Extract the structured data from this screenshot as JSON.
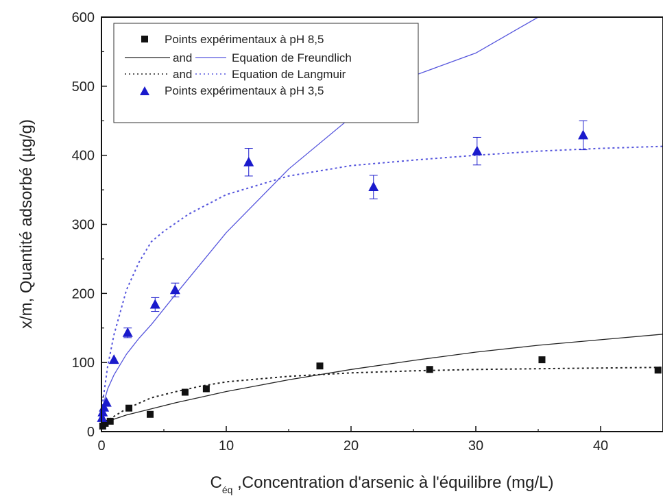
{
  "chart_data": {
    "type": "scatter",
    "title": "",
    "xlabel_main": "C",
    "xlabel_sub": "éq",
    "xlabel_rest": " ,Concentration d'arsenic à l'équilibre (mg/L)",
    "ylabel": "x/m, Quantité adsorbé (µg/g)",
    "xlim": [
      0,
      45
    ],
    "ylim": [
      0,
      600
    ],
    "xticks": [
      "0",
      "10",
      "20",
      "30",
      "40"
    ],
    "yticks": [
      "0",
      "100",
      "200",
      "300",
      "400",
      "500",
      "600"
    ],
    "xtick_values": [
      0,
      10,
      20,
      30,
      40
    ],
    "ytick_values": [
      0,
      100,
      200,
      300,
      400,
      500,
      600
    ],
    "grid": false,
    "legend_position": "top-left",
    "colors": {
      "ph85": "#111111",
      "ph35": "#1a1acc",
      "fit35": "#5555dd",
      "fit85": "#222222"
    },
    "series": [
      {
        "name": "Points expérimentaux à pH 8,5",
        "kind": "scatter",
        "marker": "square",
        "color": "#111111",
        "x": [
          0.1,
          0.3,
          0.7,
          2.2,
          3.9,
          6.7,
          8.4,
          17.5,
          26.3,
          35.3,
          44.6
        ],
        "y": [
          8,
          12,
          15,
          34,
          25,
          57,
          62,
          95,
          90,
          104,
          89
        ]
      },
      {
        "name": "Points expérimentaux à pH 3,5",
        "kind": "scatter",
        "marker": "triangle",
        "color": "#1a1acc",
        "x": [
          0.05,
          0.1,
          0.2,
          0.4,
          1.0,
          2.1,
          4.3,
          5.9,
          11.8,
          21.8,
          30.1,
          38.6
        ],
        "y": [
          20,
          28,
          35,
          42,
          104,
          143,
          184,
          205,
          390,
          354,
          406,
          429
        ],
        "err": [
          0,
          0,
          0,
          0,
          0,
          7,
          10,
          10,
          20,
          17,
          20,
          21
        ]
      },
      {
        "name": "Equation de Freundlich (pH 3,5)",
        "kind": "line",
        "dash": "solid",
        "color": "#5555dd",
        "x": [
          0,
          0.5,
          1,
          2,
          3,
          4,
          6,
          10,
          15,
          20,
          25,
          30,
          35
        ],
        "y": [
          30,
          62,
          82,
          112,
          135,
          155,
          200,
          288,
          380,
          455,
          515,
          548,
          600
        ]
      },
      {
        "name": "Equation de Langmuir (pH 3,5)",
        "kind": "line",
        "dash": "dotted",
        "color": "#5555dd",
        "x": [
          0,
          0.5,
          1,
          2,
          3,
          4,
          5,
          7,
          10,
          15,
          20,
          25,
          30,
          35,
          40,
          45
        ],
        "y": [
          30,
          95,
          140,
          205,
          245,
          275,
          290,
          315,
          343,
          370,
          385,
          393,
          400,
          406,
          410,
          413
        ]
      },
      {
        "name": "Equation de Freundlich (pH 8,5)",
        "kind": "line",
        "dash": "solid",
        "color": "#222222",
        "x": [
          0,
          1,
          2,
          4,
          6,
          8,
          10,
          15,
          20,
          25,
          30,
          35,
          40,
          45
        ],
        "y": [
          10,
          18,
          24,
          33,
          42,
          50,
          58,
          75,
          90,
          103,
          115,
          125,
          133,
          141
        ]
      },
      {
        "name": "Equation de Langmuir (pH 8,5)",
        "kind": "line",
        "dash": "dotted",
        "color": "#222222",
        "x": [
          0,
          1,
          2,
          4,
          6,
          8,
          10,
          15,
          20,
          25,
          30,
          35,
          40,
          45
        ],
        "y": [
          10,
          22,
          33,
          49,
          58,
          66,
          72,
          80,
          85,
          88,
          90,
          91,
          92,
          93
        ]
      }
    ],
    "legend": [
      {
        "label": "Points expérimentaux à pH 8,5",
        "type": "square",
        "color": "#111111"
      },
      {
        "label": "Equation de Freundlich",
        "type": "line-pair",
        "dash": "solid",
        "joiner": "and"
      },
      {
        "label": "Equation de Langmuir",
        "type": "line-pair",
        "dash": "dotted",
        "joiner": "and"
      },
      {
        "label": "Points expérimentaux à pH 3,5",
        "type": "triangle",
        "color": "#1a1acc"
      }
    ]
  }
}
